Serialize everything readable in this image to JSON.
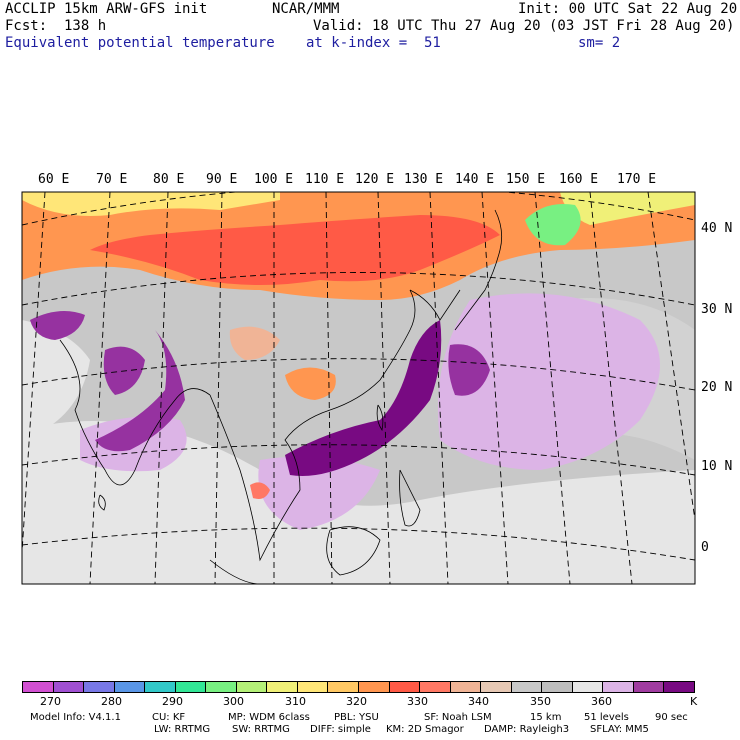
{
  "header": {
    "model": "ACCLIP 15km ARW-GFS init",
    "org": "NCAR/MMM",
    "init": "Init: 00 UTC Sat 22 Aug 20",
    "fcst": "Fcst:  138 h",
    "valid": "Valid: 18 UTC Thu 27 Aug 20 (03 JST Fri 28 Aug 20)",
    "field": "Equivalent potential temperature",
    "level": "at k-index =  51",
    "smooth": "sm= 2"
  },
  "map": {
    "lon_labels": [
      "60 E",
      "70 E",
      "80 E",
      "90 E",
      "100 E",
      "110 E",
      "120 E",
      "130 E",
      "140 E",
      "150 E",
      "160 E",
      "170 E"
    ],
    "lat_labels": [
      "40 N",
      "30 N",
      "20 N",
      "10 N",
      "0"
    ],
    "colors": {
      "background_gray": "#c8c8c8",
      "light_gray": "#e6e6e6",
      "lilac": "#dcb4e6",
      "purple": "#9632a0",
      "dark_purple": "#780a82",
      "orange": "#ff9650",
      "red": "#ff5a46",
      "salmon": "#f0b496",
      "yellow": "#ffe678",
      "light_green": "#b4f078",
      "green": "#78f082"
    }
  },
  "colorbar": {
    "colors": [
      "#d250d2",
      "#a050d2",
      "#7878e6",
      "#5a96e6",
      "#32c8c8",
      "#32e696",
      "#78f082",
      "#b4f078",
      "#f0f078",
      "#ffe678",
      "#ffc864",
      "#ff9650",
      "#ff5a46",
      "#ff7864",
      "#f0b496",
      "#e6c8b4",
      "#c8c8c8",
      "#bebebe",
      "#e6e6e6",
      "#dcb4e6",
      "#a03ca0",
      "#780a82"
    ],
    "labels": [
      "270",
      "280",
      "290",
      "300",
      "310",
      "320",
      "330",
      "340",
      "350",
      "360",
      "K"
    ]
  },
  "footer": {
    "line1": [
      "Model Info: V4.1.1",
      "CU: KF",
      "MP: WDM 6class",
      "PBL: YSU",
      "SF: Noah LSM",
      "15 km",
      "51 levels",
      "90 sec"
    ],
    "line2": [
      "LW: RRTMG",
      "SW: RRTMG",
      "DIFF: simple",
      "KM: 2D Smagor",
      "DAMP: Rayleigh3",
      "SFLAY: MM5"
    ]
  }
}
